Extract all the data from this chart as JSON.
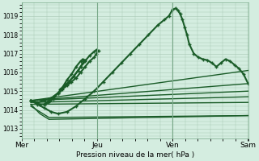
{
  "bg_color": "#d4ede0",
  "grid_color": "#a8c8b4",
  "line_color": "#1a5c28",
  "marker_color": "#1a5c28",
  "xlabel": "Pression niveau de la mer( hPa )",
  "ylim": [
    1012.5,
    1019.7
  ],
  "yticks": [
    1013,
    1014,
    1015,
    1016,
    1017,
    1018,
    1019
  ],
  "xtick_labels": [
    "Mer",
    "Jeu",
    "Ven",
    "Sam"
  ],
  "xtick_positions": [
    0.0,
    0.333,
    0.667,
    1.0
  ],
  "series": [
    {
      "x": [
        0.04,
        0.07,
        0.1,
        0.13,
        0.16,
        0.2,
        0.24,
        0.28,
        0.32,
        0.36,
        0.4,
        0.44,
        0.48,
        0.52,
        0.56,
        0.6,
        0.63,
        0.65,
        0.667,
        0.68,
        0.69,
        0.7,
        0.71,
        0.72,
        0.73,
        0.74,
        0.76,
        0.78,
        0.8,
        0.82,
        0.84,
        0.86,
        0.88,
        0.9,
        0.92,
        0.94,
        0.96,
        0.98,
        1.0
      ],
      "y": [
        1014.5,
        1014.3,
        1014.1,
        1013.9,
        1013.8,
        1013.9,
        1014.2,
        1014.6,
        1015.0,
        1015.5,
        1016.0,
        1016.5,
        1017.0,
        1017.5,
        1018.0,
        1018.5,
        1018.8,
        1019.0,
        1019.35,
        1019.4,
        1019.3,
        1019.1,
        1018.8,
        1018.4,
        1018.0,
        1017.5,
        1017.0,
        1016.8,
        1016.7,
        1016.65,
        1016.5,
        1016.3,
        1016.5,
        1016.7,
        1016.6,
        1016.4,
        1016.2,
        1015.9,
        1015.4
      ],
      "marker": true,
      "linewidth": 1.5
    },
    {
      "x": [
        0.04,
        0.07,
        0.1,
        0.14,
        0.17,
        0.2,
        0.23,
        0.26,
        0.28,
        0.3,
        0.32,
        0.33,
        0.34,
        0.33,
        0.32,
        0.3,
        0.28,
        0.26,
        0.24,
        0.22,
        0.2,
        0.18,
        0.16,
        0.14,
        0.12,
        0.1
      ],
      "y": [
        1014.5,
        1014.4,
        1014.5,
        1014.7,
        1015.0,
        1015.4,
        1015.8,
        1016.3,
        1016.6,
        1016.9,
        1017.1,
        1017.2,
        1017.15,
        1017.0,
        1016.8,
        1016.6,
        1016.3,
        1016.0,
        1015.7,
        1015.5,
        1015.3,
        1015.1,
        1014.9,
        1014.7,
        1014.5,
        1014.3
      ],
      "marker": true,
      "linewidth": 1.5
    },
    {
      "x": [
        0.04,
        0.06,
        0.08,
        0.1,
        0.12,
        0.14,
        0.16,
        0.18,
        0.2,
        0.22,
        0.24,
        0.26,
        0.27,
        0.28,
        0.27,
        0.26,
        0.25,
        0.23,
        0.21,
        0.19,
        0.17
      ],
      "y": [
        1014.5,
        1014.4,
        1014.3,
        1014.3,
        1014.4,
        1014.6,
        1014.9,
        1015.2,
        1015.6,
        1015.9,
        1016.3,
        1016.6,
        1016.7,
        1016.65,
        1016.5,
        1016.3,
        1016.1,
        1015.8,
        1015.5,
        1015.3,
        1015.1
      ],
      "marker": true,
      "linewidth": 1.5
    },
    {
      "x": [
        0.04,
        1.0
      ],
      "y": [
        1014.5,
        1015.4
      ],
      "marker": false,
      "linewidth": 1.0
    },
    {
      "x": [
        0.04,
        1.0
      ],
      "y": [
        1014.5,
        1015.0
      ],
      "marker": false,
      "linewidth": 1.0
    },
    {
      "x": [
        0.04,
        1.0
      ],
      "y": [
        1014.4,
        1014.7
      ],
      "marker": false,
      "linewidth": 1.0
    },
    {
      "x": [
        0.04,
        1.0
      ],
      "y": [
        1014.3,
        1014.4
      ],
      "marker": false,
      "linewidth": 1.0
    },
    {
      "x": [
        0.04,
        0.12,
        1.0
      ],
      "y": [
        1014.2,
        1013.6,
        1013.7
      ],
      "marker": false,
      "linewidth": 1.0
    },
    {
      "x": [
        0.04,
        0.08,
        0.12,
        1.0
      ],
      "y": [
        1014.3,
        1013.8,
        1013.5,
        1013.7
      ],
      "marker": false,
      "linewidth": 1.0
    },
    {
      "x": [
        0.04,
        1.0
      ],
      "y": [
        1014.5,
        1016.1
      ],
      "marker": false,
      "linewidth": 1.0
    }
  ]
}
